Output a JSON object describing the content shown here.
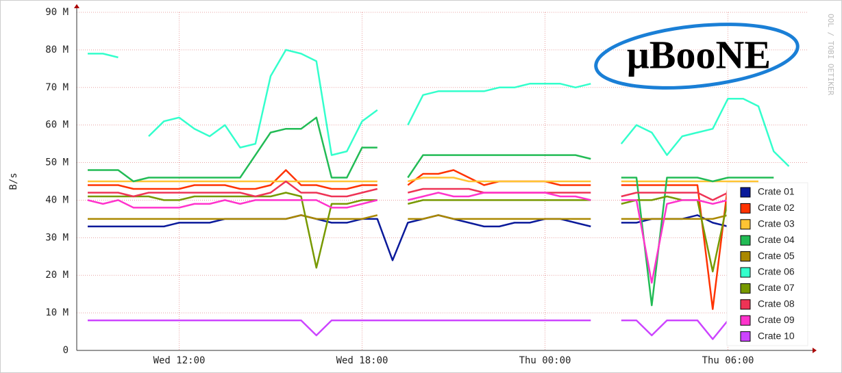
{
  "chart_data": {
    "type": "line",
    "y_label": "B/s",
    "watermark": "OOL / TOBI OETIKER",
    "logo": "μBooNE",
    "categories": [
      null,
      null,
      null,
      null,
      null,
      null,
      "Wed 12:00",
      null,
      null,
      null,
      null,
      null,
      null,
      null,
      null,
      null,
      null,
      null,
      "Wed 18:00",
      null,
      null,
      null,
      null,
      null,
      null,
      null,
      null,
      null,
      null,
      null,
      "Thu 00:00",
      null,
      null,
      null,
      null,
      null,
      null,
      null,
      null,
      null,
      null,
      null,
      "Thu 06:00",
      null,
      null,
      null,
      null,
      null
    ],
    "ylim": [
      0,
      90
    ],
    "yticks": [
      0,
      {
        "value": 10,
        "label": "10 M"
      },
      {
        "value": 20,
        "label": "20 M"
      },
      {
        "value": 30,
        "label": "30 M"
      },
      {
        "value": 40,
        "label": "40 M"
      },
      {
        "value": 50,
        "label": "50 M"
      },
      {
        "value": 60,
        "label": "60 M"
      },
      {
        "value": 70,
        "label": "70 M"
      },
      {
        "value": 80,
        "label": "80 M"
      },
      {
        "value": 90,
        "label": "90 M"
      }
    ],
    "grid": true,
    "legend": "bottom-right",
    "series": [
      {
        "name": "Crate 01",
        "color": "#0a1a9a",
        "values": [
          33,
          33,
          33,
          33,
          33,
          33,
          34,
          34,
          34,
          35,
          35,
          35,
          35,
          35,
          36,
          35,
          34,
          34,
          35,
          35,
          24,
          34,
          35,
          36,
          35,
          34,
          33,
          33,
          34,
          34,
          35,
          35,
          34,
          33,
          null,
          34,
          34,
          35,
          35,
          35,
          36,
          34,
          33,
          null,
          null,
          null,
          null,
          null
        ]
      },
      {
        "name": "Crate 02",
        "color": "#ff3300",
        "values": [
          44,
          44,
          44,
          43,
          43,
          43,
          43,
          44,
          44,
          44,
          43,
          43,
          44,
          48,
          44,
          44,
          43,
          43,
          44,
          44,
          null,
          44,
          47,
          47,
          48,
          46,
          44,
          45,
          45,
          45,
          45,
          44,
          44,
          44,
          null,
          44,
          44,
          44,
          44,
          44,
          44,
          11,
          44,
          44,
          44,
          null,
          null,
          null
        ]
      },
      {
        "name": "Crate 03",
        "color": "#ffc433",
        "values": [
          45,
          45,
          45,
          45,
          45,
          45,
          45,
          45,
          45,
          45,
          45,
          45,
          45,
          45,
          45,
          45,
          45,
          45,
          45,
          45,
          null,
          45,
          46,
          46,
          46,
          45,
          45,
          45,
          45,
          45,
          45,
          45,
          45,
          45,
          null,
          45,
          45,
          45,
          45,
          45,
          45,
          45,
          45,
          45,
          45,
          null,
          null,
          null
        ]
      },
      {
        "name": "Crate 04",
        "color": "#22bb55",
        "values": [
          48,
          48,
          48,
          45,
          46,
          46,
          46,
          46,
          46,
          46,
          46,
          52,
          58,
          59,
          59,
          62,
          46,
          46,
          54,
          54,
          null,
          46,
          52,
          52,
          52,
          52,
          52,
          52,
          52,
          52,
          52,
          52,
          52,
          51,
          null,
          46,
          46,
          12,
          46,
          46,
          46,
          45,
          46,
          46,
          46,
          46,
          null,
          null
        ]
      },
      {
        "name": "Crate 05",
        "color": "#aa8800",
        "values": [
          35,
          35,
          35,
          35,
          35,
          35,
          35,
          35,
          35,
          35,
          35,
          35,
          35,
          35,
          36,
          35,
          35,
          35,
          35,
          36,
          null,
          35,
          35,
          36,
          35,
          35,
          35,
          35,
          35,
          35,
          35,
          35,
          35,
          35,
          null,
          35,
          35,
          35,
          35,
          35,
          35,
          35,
          36,
          35,
          35,
          null,
          null,
          null
        ]
      },
      {
        "name": "Crate 06",
        "color": "#33ffcc",
        "values": [
          79,
          79,
          78,
          null,
          57,
          61,
          62,
          59,
          57,
          60,
          54,
          55,
          73,
          80,
          79,
          77,
          52,
          53,
          61,
          64,
          null,
          60,
          68,
          69,
          69,
          69,
          69,
          70,
          70,
          71,
          71,
          71,
          70,
          71,
          null,
          55,
          60,
          58,
          52,
          57,
          58,
          59,
          67,
          67,
          65,
          53,
          49,
          null
        ]
      },
      {
        "name": "Crate 07",
        "color": "#779900",
        "values": [
          41,
          41,
          41,
          41,
          41,
          40,
          40,
          41,
          41,
          41,
          41,
          41,
          41,
          42,
          41,
          22,
          39,
          39,
          40,
          40,
          null,
          39,
          40,
          40,
          40,
          40,
          40,
          40,
          40,
          40,
          40,
          40,
          40,
          40,
          null,
          39,
          40,
          40,
          41,
          40,
          40,
          21,
          40,
          40,
          40,
          null,
          null,
          null
        ]
      },
      {
        "name": "Crate 08",
        "color": "#ee3355",
        "values": [
          42,
          42,
          42,
          41,
          42,
          42,
          42,
          42,
          42,
          42,
          42,
          41,
          42,
          45,
          42,
          42,
          41,
          41,
          42,
          43,
          null,
          42,
          43,
          43,
          43,
          43,
          42,
          42,
          42,
          42,
          42,
          42,
          42,
          42,
          null,
          41,
          42,
          42,
          42,
          42,
          42,
          40,
          42,
          42,
          42,
          null,
          null,
          null
        ]
      },
      {
        "name": "Crate 09",
        "color": "#ff33cc",
        "values": [
          40,
          39,
          40,
          38,
          38,
          38,
          38,
          39,
          39,
          40,
          39,
          40,
          40,
          40,
          40,
          40,
          38,
          38,
          39,
          40,
          null,
          40,
          41,
          42,
          41,
          41,
          42,
          42,
          42,
          42,
          42,
          41,
          41,
          40,
          null,
          40,
          40,
          18,
          39,
          40,
          40,
          39,
          40,
          40,
          40,
          null,
          null,
          null
        ]
      },
      {
        "name": "Crate 10",
        "color": "#cc44ff",
        "values": [
          8,
          8,
          8,
          8,
          8,
          8,
          8,
          8,
          8,
          8,
          8,
          8,
          8,
          8,
          8,
          4,
          8,
          8,
          8,
          8,
          8,
          8,
          8,
          8,
          8,
          8,
          8,
          8,
          8,
          8,
          8,
          8,
          8,
          8,
          null,
          8,
          8,
          4,
          8,
          8,
          8,
          3,
          8,
          8,
          8,
          8,
          8,
          null
        ]
      }
    ]
  }
}
